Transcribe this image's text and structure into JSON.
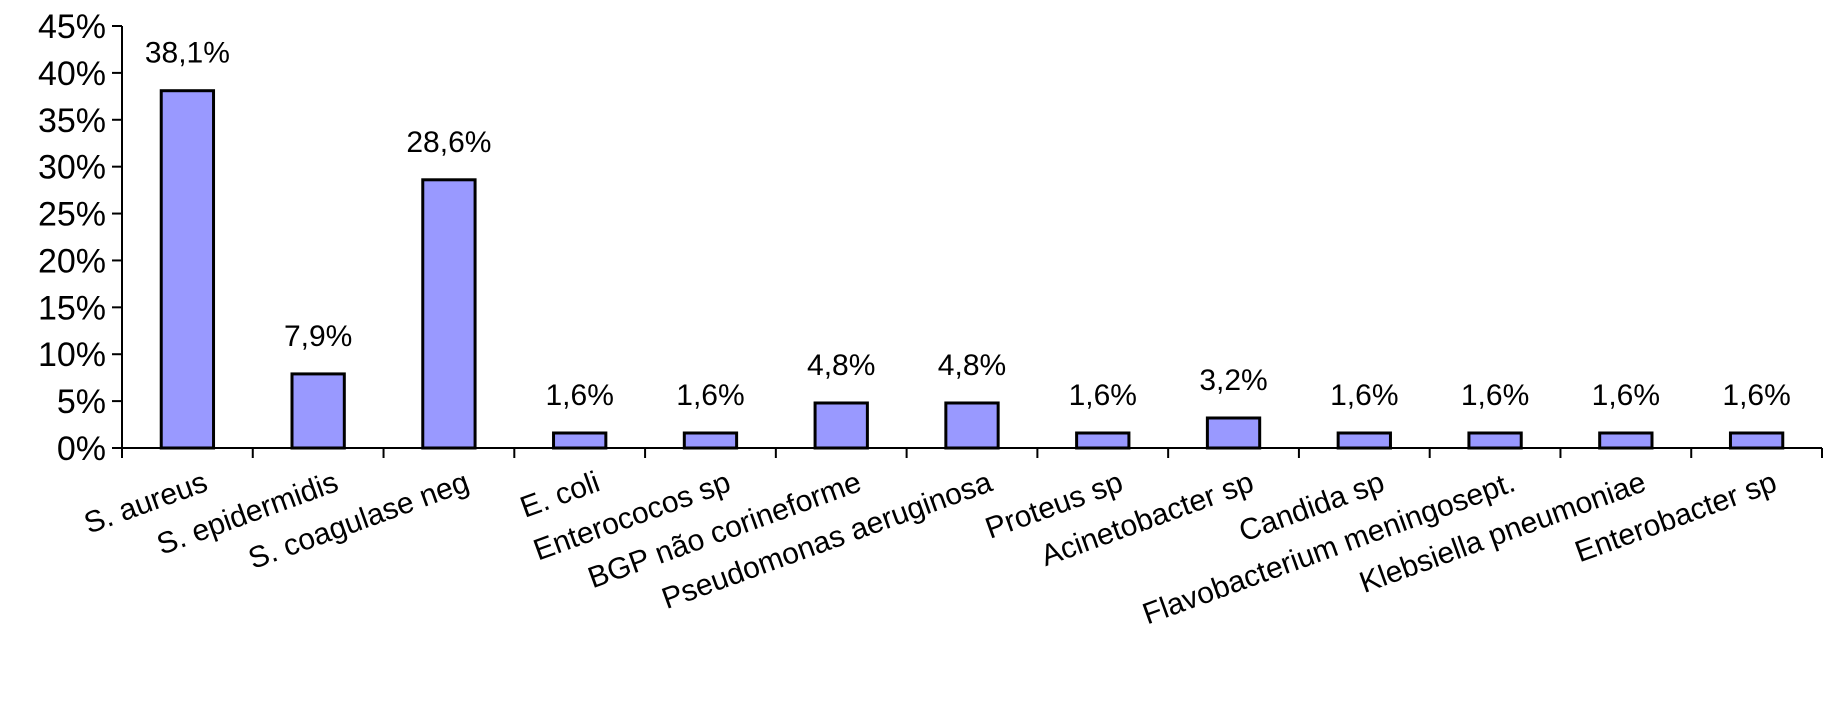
{
  "colors": {
    "bar_fill": "#9999FF",
    "bar_stroke": "#000000",
    "axis": "#000000",
    "background": "#FFFFFF"
  },
  "chart_data": {
    "type": "bar",
    "title": "",
    "xlabel": "",
    "ylabel": "",
    "ylim": [
      0,
      45
    ],
    "y_ticks": [
      "0%",
      "5%",
      "10%",
      "15%",
      "20%",
      "25%",
      "30%",
      "35%",
      "40%",
      "45%"
    ],
    "grid": false,
    "legend": "none",
    "categories": [
      "S. aureus",
      "S. epidermidis",
      "S. coagulase neg",
      "E. coli",
      "Enterococos sp",
      "BGP não corineforme",
      "Pseudomonas aeruginosa",
      "Proteus sp",
      "Acinetobacter sp",
      "Candida sp",
      "Flavobacterium meningosept.",
      "Klebsiella  pneumoniae",
      "Enterobacter sp"
    ],
    "values": [
      38.1,
      7.9,
      28.6,
      1.6,
      1.6,
      4.8,
      4.8,
      1.6,
      3.2,
      1.6,
      1.6,
      1.6,
      1.6
    ],
    "data_labels": [
      "38,1%",
      "7,9%",
      "28,6%",
      "1,6%",
      "1,6%",
      "4,8%",
      "4,8%",
      "1,6%",
      "3,2%",
      "1,6%",
      "1,6%",
      "1,6%",
      "1,6%"
    ]
  }
}
